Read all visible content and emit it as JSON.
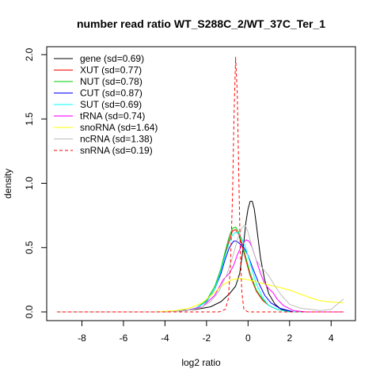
{
  "chart_data": {
    "type": "line",
    "title": "number read ratio WT_S288C_2/WT_37C_Ter_1",
    "xlabel": "log2 ratio",
    "ylabel": "density",
    "xlim": [
      -9.2,
      4.6
    ],
    "ylim": [
      0,
      2.0
    ],
    "xticks": [
      -8,
      -6,
      -4,
      -2,
      0,
      2,
      4
    ],
    "yticks": [
      0.0,
      0.5,
      1.0,
      1.5,
      2.0
    ],
    "xtick_labels": [
      "-8",
      "-6",
      "-4",
      "-2",
      "0",
      "2",
      "4"
    ],
    "ytick_labels": [
      "0.0",
      "0.5",
      "1.0",
      "1.5",
      "2.0"
    ],
    "grid": false,
    "legend_position": "top-left",
    "series": [
      {
        "name": "gene (sd=0.69)",
        "color": "#000000",
        "dash": false,
        "points": [
          [
            -9.2,
            0
          ],
          [
            -4,
            0
          ],
          [
            -3.2,
            0.01
          ],
          [
            -2.5,
            0.02
          ],
          [
            -1.8,
            0.04
          ],
          [
            -1.3,
            0.08
          ],
          [
            -0.9,
            0.14
          ],
          [
            -0.6,
            0.2
          ],
          [
            -0.4,
            0.3
          ],
          [
            -0.3,
            0.42
          ],
          [
            -0.2,
            0.55
          ],
          [
            -0.1,
            0.7
          ],
          [
            0.0,
            0.8
          ],
          [
            0.1,
            0.86
          ],
          [
            0.2,
            0.86
          ],
          [
            0.3,
            0.8
          ],
          [
            0.4,
            0.68
          ],
          [
            0.5,
            0.55
          ],
          [
            0.6,
            0.42
          ],
          [
            0.8,
            0.25
          ],
          [
            1.0,
            0.14
          ],
          [
            1.3,
            0.06
          ],
          [
            1.6,
            0.02
          ],
          [
            2.2,
            0.0
          ],
          [
            4.6,
            0
          ]
        ]
      },
      {
        "name": "XUT (sd=0.77)",
        "color": "#ff0000",
        "dash": false,
        "points": [
          [
            -9.2,
            0
          ],
          [
            -4,
            0
          ],
          [
            -3.0,
            0.01
          ],
          [
            -2.5,
            0.03
          ],
          [
            -2.0,
            0.08
          ],
          [
            -1.6,
            0.18
          ],
          [
            -1.3,
            0.32
          ],
          [
            -1.1,
            0.45
          ],
          [
            -0.9,
            0.56
          ],
          [
            -0.75,
            0.63
          ],
          [
            -0.6,
            0.64
          ],
          [
            -0.45,
            0.6
          ],
          [
            -0.3,
            0.52
          ],
          [
            -0.1,
            0.4
          ],
          [
            0.1,
            0.28
          ],
          [
            0.4,
            0.16
          ],
          [
            0.7,
            0.09
          ],
          [
            1.0,
            0.05
          ],
          [
            1.4,
            0.02
          ],
          [
            2.0,
            0.0
          ],
          [
            4.6,
            0
          ]
        ]
      },
      {
        "name": "NUT (sd=0.78)",
        "color": "#00cc00",
        "dash": false,
        "points": [
          [
            -9.2,
            0
          ],
          [
            -4,
            0
          ],
          [
            -3.0,
            0.01
          ],
          [
            -2.5,
            0.03
          ],
          [
            -2.0,
            0.09
          ],
          [
            -1.6,
            0.2
          ],
          [
            -1.3,
            0.34
          ],
          [
            -1.1,
            0.47
          ],
          [
            -0.9,
            0.59
          ],
          [
            -0.75,
            0.65
          ],
          [
            -0.6,
            0.66
          ],
          [
            -0.45,
            0.62
          ],
          [
            -0.3,
            0.54
          ],
          [
            -0.1,
            0.42
          ],
          [
            0.1,
            0.3
          ],
          [
            0.4,
            0.17
          ],
          [
            0.7,
            0.1
          ],
          [
            1.0,
            0.05
          ],
          [
            1.4,
            0.02
          ],
          [
            2.0,
            0.0
          ],
          [
            4.6,
            0
          ]
        ]
      },
      {
        "name": "CUT (sd=0.87)",
        "color": "#0000ff",
        "dash": false,
        "points": [
          [
            -9.2,
            0
          ],
          [
            -4,
            0
          ],
          [
            -3.0,
            0.01
          ],
          [
            -2.5,
            0.03
          ],
          [
            -2.0,
            0.08
          ],
          [
            -1.6,
            0.18
          ],
          [
            -1.3,
            0.3
          ],
          [
            -1.1,
            0.41
          ],
          [
            -0.9,
            0.5
          ],
          [
            -0.7,
            0.55
          ],
          [
            -0.55,
            0.55
          ],
          [
            -0.4,
            0.53
          ],
          [
            -0.2,
            0.5
          ],
          [
            0.0,
            0.44
          ],
          [
            0.2,
            0.35
          ],
          [
            0.5,
            0.23
          ],
          [
            0.8,
            0.13
          ],
          [
            1.1,
            0.07
          ],
          [
            1.5,
            0.03
          ],
          [
            2.2,
            0.0
          ],
          [
            4.6,
            0
          ]
        ]
      },
      {
        "name": "SUT (sd=0.69)",
        "color": "#00ffff",
        "dash": false,
        "points": [
          [
            -9.2,
            0
          ],
          [
            -4,
            0
          ],
          [
            -3.0,
            0.01
          ],
          [
            -2.5,
            0.03
          ],
          [
            -2.0,
            0.08
          ],
          [
            -1.6,
            0.18
          ],
          [
            -1.3,
            0.32
          ],
          [
            -1.1,
            0.44
          ],
          [
            -0.9,
            0.54
          ],
          [
            -0.75,
            0.6
          ],
          [
            -0.6,
            0.62
          ],
          [
            -0.45,
            0.61
          ],
          [
            -0.3,
            0.57
          ],
          [
            -0.1,
            0.49
          ],
          [
            0.1,
            0.38
          ],
          [
            0.4,
            0.22
          ],
          [
            0.7,
            0.11
          ],
          [
            1.0,
            0.05
          ],
          [
            1.4,
            0.02
          ],
          [
            2.0,
            0.0
          ],
          [
            4.6,
            0
          ]
        ]
      },
      {
        "name": "tRNA (sd=0.74)",
        "color": "#ff00ff",
        "dash": false,
        "points": [
          [
            -9.2,
            0
          ],
          [
            -4,
            0
          ],
          [
            -3.0,
            0.01
          ],
          [
            -2.2,
            0.04
          ],
          [
            -1.6,
            0.13
          ],
          [
            -1.2,
            0.25
          ],
          [
            -0.9,
            0.3
          ],
          [
            -0.7,
            0.36
          ],
          [
            -0.5,
            0.45
          ],
          [
            -0.3,
            0.52
          ],
          [
            -0.1,
            0.56
          ],
          [
            0.05,
            0.55
          ],
          [
            0.2,
            0.5
          ],
          [
            0.4,
            0.4
          ],
          [
            0.6,
            0.3
          ],
          [
            0.8,
            0.22
          ],
          [
            1.0,
            0.18
          ],
          [
            1.2,
            0.15
          ],
          [
            1.4,
            0.1
          ],
          [
            1.7,
            0.05
          ],
          [
            2.2,
            0.01
          ],
          [
            2.8,
            0.0
          ],
          [
            4.6,
            0
          ]
        ]
      },
      {
        "name": "snoRNA (sd=1.64)",
        "color": "#ffff00",
        "dash": false,
        "points": [
          [
            -9.2,
            0
          ],
          [
            -4.5,
            0
          ],
          [
            -3.5,
            0.01
          ],
          [
            -2.8,
            0.03
          ],
          [
            -2.2,
            0.07
          ],
          [
            -1.7,
            0.14
          ],
          [
            -1.2,
            0.21
          ],
          [
            -0.8,
            0.25
          ],
          [
            -0.4,
            0.26
          ],
          [
            0.0,
            0.25
          ],
          [
            0.5,
            0.23
          ],
          [
            1.0,
            0.21
          ],
          [
            1.5,
            0.19
          ],
          [
            2.0,
            0.17
          ],
          [
            2.5,
            0.14
          ],
          [
            3.0,
            0.11
          ],
          [
            3.4,
            0.09
          ],
          [
            3.8,
            0.08
          ],
          [
            4.2,
            0.075
          ],
          [
            4.6,
            0.07
          ]
        ]
      },
      {
        "name": "ncRNA (sd=1.38)",
        "color": "#bebebe",
        "dash": false,
        "points": [
          [
            -9.2,
            0
          ],
          [
            -4,
            0
          ],
          [
            -3.0,
            0.01
          ],
          [
            -2.3,
            0.03
          ],
          [
            -1.8,
            0.08
          ],
          [
            -1.4,
            0.16
          ],
          [
            -1.0,
            0.3
          ],
          [
            -0.7,
            0.45
          ],
          [
            -0.5,
            0.57
          ],
          [
            -0.3,
            0.65
          ],
          [
            -0.15,
            0.68
          ],
          [
            0.0,
            0.62
          ],
          [
            0.2,
            0.5
          ],
          [
            0.4,
            0.4
          ],
          [
            0.7,
            0.34
          ],
          [
            1.0,
            0.28
          ],
          [
            1.3,
            0.2
          ],
          [
            1.6,
            0.13
          ],
          [
            2.0,
            0.06
          ],
          [
            2.5,
            0.03
          ],
          [
            3.0,
            0.02
          ],
          [
            3.5,
            0.01
          ],
          [
            4.0,
            0.02
          ],
          [
            4.3,
            0.06
          ],
          [
            4.6,
            0.1
          ]
        ]
      },
      {
        "name": "snRNA (sd=0.19)",
        "color": "#ff0000",
        "dash": true,
        "points": [
          [
            -9.2,
            0
          ],
          [
            -1.4,
            0
          ],
          [
            -1.1,
            0.02
          ],
          [
            -0.95,
            0.1
          ],
          [
            -0.85,
            0.35
          ],
          [
            -0.75,
            0.9
          ],
          [
            -0.68,
            1.5
          ],
          [
            -0.6,
            1.98
          ],
          [
            -0.52,
            1.7
          ],
          [
            -0.45,
            1.1
          ],
          [
            -0.38,
            0.5
          ],
          [
            -0.3,
            0.15
          ],
          [
            -0.2,
            0.02
          ],
          [
            0.0,
            0
          ],
          [
            4.6,
            0
          ]
        ]
      }
    ]
  }
}
